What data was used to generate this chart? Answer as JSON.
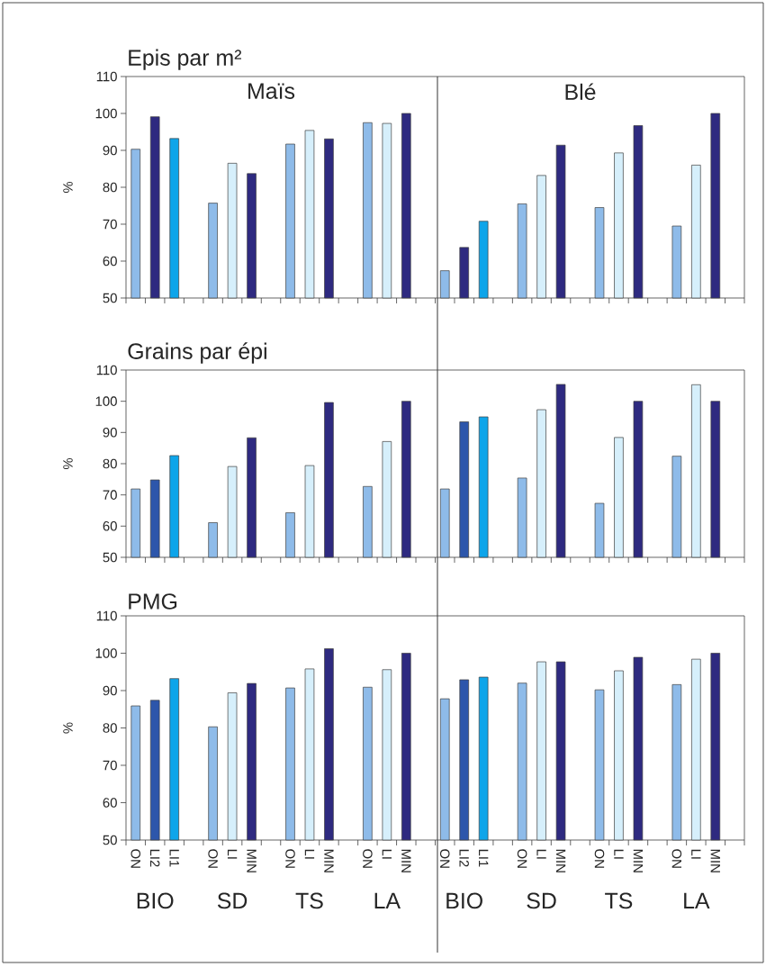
{
  "chart_data": [
    {
      "type": "bar",
      "title": "Epis par m²",
      "ylabel": "%",
      "tick_labels": "y",
      "categories": [
        null,
        null,
        null,
        null,
        null,
        null,
        null,
        null,
        null,
        null,
        null,
        null,
        null,
        null,
        null,
        null,
        null,
        null,
        null,
        null,
        null,
        null,
        null,
        null
      ],
      "values": [
        90.3,
        99.1,
        93.2,
        75.7,
        86.5,
        83.7,
        91.7,
        95.4,
        93.1,
        97.5,
        97.3,
        100,
        57.4,
        63.7,
        70.8,
        75.5,
        83.2,
        91.4,
        74.5,
        89.3,
        96.7,
        69.5,
        86.0,
        100
      ],
      "colors": [
        "#8ebbe9",
        "#2e2a80",
        "#0ea5ea",
        "#8ebbe9",
        "#d6effb",
        "#2e2a80",
        "#8ebbe9",
        "#d6effb",
        "#2e2a80",
        "#8ebbe9",
        "#d6effb",
        "#2e2a80",
        "#8ebbe9",
        "#2e2a80",
        "#0ea5ea",
        "#8ebbe9",
        "#d6effb",
        "#2e2a80",
        "#8ebbe9",
        "#d6effb",
        "#2e2a80",
        "#8ebbe9",
        "#d6effb",
        "#2e2a80"
      ],
      "ylim": [
        50,
        110
      ],
      "yticks": [
        50,
        60,
        70,
        80,
        90,
        100,
        110
      ],
      "annotations": [
        "Maïs",
        "Blé"
      ]
    },
    {
      "type": "bar",
      "title": "Grains par épi",
      "ylabel": "%",
      "tick_labels": "y",
      "categories": [
        null,
        null,
        null,
        null,
        null,
        null,
        null,
        null,
        null,
        null,
        null,
        null,
        null,
        null,
        null,
        null,
        null,
        null,
        null,
        null,
        null,
        null,
        null,
        null
      ],
      "values": [
        71.9,
        74.8,
        82.6,
        61.1,
        79.1,
        88.3,
        64.3,
        79.4,
        99.6,
        72.7,
        87.1,
        100,
        71.9,
        93.4,
        95.0,
        75.4,
        97.3,
        105.4,
        67.3,
        88.4,
        100,
        82.4,
        105.3,
        100
      ],
      "colors": [
        "#8ebbe9",
        "#2d56ab",
        "#0ea5ea",
        "#8ebbe9",
        "#d6effb",
        "#2e2a80",
        "#8ebbe9",
        "#d6effb",
        "#2e2a80",
        "#8ebbe9",
        "#d6effb",
        "#2e2a80",
        "#8ebbe9",
        "#2d56ab",
        "#0ea5ea",
        "#8ebbe9",
        "#d6effb",
        "#2e2a80",
        "#8ebbe9",
        "#d6effb",
        "#2e2a80",
        "#8ebbe9",
        "#d6effb",
        "#2e2a80"
      ],
      "ylim": [
        50,
        110
      ],
      "yticks": [
        50,
        60,
        70,
        80,
        90,
        100,
        110
      ]
    },
    {
      "type": "bar",
      "title": "PMG",
      "ylabel": "%",
      "categories": [
        "ON",
        "LI2",
        "LI1",
        "ON",
        "LI",
        "MIN",
        "ON",
        "LI",
        "MIN",
        "ON",
        "LI",
        "MIN",
        "ON",
        "LI2",
        "LI1",
        "ON",
        "LI",
        "MIN",
        "ON",
        "LI",
        "MIN",
        "ON",
        "LI",
        "MIN"
      ],
      "values": [
        85.9,
        87.4,
        93.2,
        80.3,
        89.4,
        91.9,
        90.7,
        95.8,
        101.2,
        90.9,
        95.6,
        100,
        87.8,
        92.9,
        93.6,
        92.0,
        97.7,
        97.7,
        90.2,
        95.3,
        98.9,
        91.6,
        98.4,
        100
      ],
      "colors": [
        "#8ebbe9",
        "#2d56ab",
        "#0ea5ea",
        "#8ebbe9",
        "#d6effb",
        "#2e2a80",
        "#8ebbe9",
        "#d6effb",
        "#2e2a80",
        "#8ebbe9",
        "#d6effb",
        "#2e2a80",
        "#8ebbe9",
        "#2d56ab",
        "#0ea5ea",
        "#8ebbe9",
        "#d6effb",
        "#2e2a80",
        "#8ebbe9",
        "#d6effb",
        "#2e2a80",
        "#8ebbe9",
        "#d6effb",
        "#2e2a80"
      ],
      "ylim": [
        50,
        110
      ],
      "yticks": [
        50,
        60,
        70,
        80,
        90,
        100,
        110
      ],
      "annotations": [
        "BIO",
        "SD",
        "TS",
        "LA",
        "BIO",
        "SD",
        "TS",
        "LA"
      ]
    }
  ]
}
